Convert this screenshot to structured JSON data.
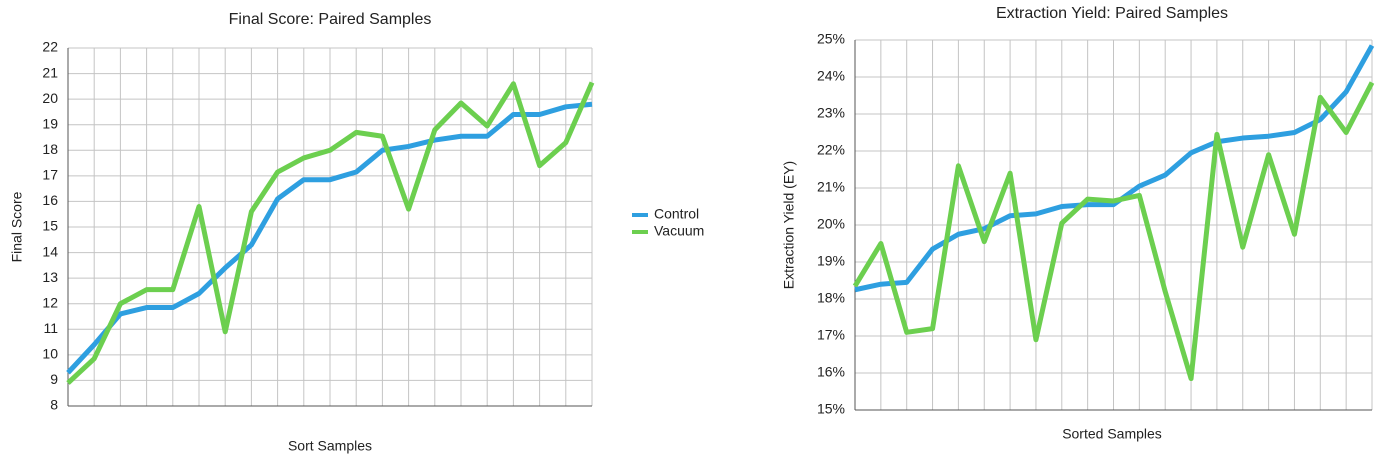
{
  "chart_data": [
    {
      "type": "line",
      "title": "Final Score: Paired Samples",
      "x_label": "Sort Samples",
      "y_label": "Final Score",
      "categories": [
        null,
        null,
        null,
        null,
        null,
        null,
        null,
        null,
        null,
        null,
        null,
        null,
        null,
        null,
        null,
        null,
        null,
        null,
        null,
        null,
        null
      ],
      "series": [
        {
          "name": "Control",
          "color": "#2e9fe0",
          "values": [
            9.3,
            10.4,
            11.6,
            11.85,
            11.85,
            12.4,
            13.4,
            14.3,
            16.1,
            16.85,
            16.85,
            17.15,
            18.0,
            18.15,
            18.4,
            18.55,
            18.55,
            19.4,
            19.4,
            19.7,
            19.8
          ]
        },
        {
          "name": "Vacuum",
          "color": "#6ccf4f",
          "values": [
            8.9,
            9.85,
            12.0,
            12.55,
            12.55,
            15.8,
            10.9,
            15.6,
            17.15,
            17.7,
            18.0,
            18.7,
            18.55,
            15.7,
            18.8,
            19.85,
            18.95,
            20.6,
            17.4,
            18.3,
            20.65
          ]
        }
      ],
      "ylim": [
        8,
        22
      ],
      "yticks": [
        8,
        9,
        10,
        11,
        12,
        13,
        14,
        15,
        16,
        17,
        18,
        19,
        20,
        21,
        22
      ],
      "grid": true,
      "legend": "right"
    },
    {
      "type": "line",
      "title": "Extraction Yield: Paired Samples",
      "x_label": "Sorted Samples",
      "y_label": "Extraction Yield (EY)",
      "categories": [
        null,
        null,
        null,
        null,
        null,
        null,
        null,
        null,
        null,
        null,
        null,
        null,
        null,
        null,
        null,
        null,
        null,
        null,
        null,
        null,
        null
      ],
      "series": [
        {
          "color": "#2e9fe0",
          "values": [
            18.25,
            18.4,
            18.45,
            19.35,
            19.75,
            19.9,
            20.25,
            20.3,
            20.5,
            20.55,
            20.55,
            21.05,
            21.35,
            21.95,
            22.25,
            22.35,
            22.4,
            22.5,
            22.85,
            23.6,
            24.85
          ]
        },
        {
          "color": "#6ccf4f",
          "values": [
            18.35,
            19.5,
            17.1,
            17.2,
            21.6,
            19.55,
            21.4,
            16.9,
            20.05,
            20.7,
            20.65,
            20.8,
            18.2,
            15.85,
            22.45,
            19.4,
            21.9,
            19.75,
            23.45,
            22.5,
            23.85
          ]
        }
      ],
      "ylim": [
        15,
        25
      ],
      "yticks": [
        {
          "value": 15,
          "label": "15%"
        },
        {
          "value": 16,
          "label": "16%"
        },
        {
          "value": 17,
          "label": "17%"
        },
        {
          "value": 18,
          "label": "18%"
        },
        {
          "value": 19,
          "label": "19%"
        },
        {
          "value": 20,
          "label": "20%"
        },
        {
          "value": 21,
          "label": "21%"
        },
        {
          "value": 22,
          "label": "22%"
        },
        {
          "value": 23,
          "label": "23%"
        },
        {
          "value": 24,
          "label": "24%"
        },
        {
          "value": 25,
          "label": "25%"
        }
      ],
      "grid": true
    }
  ]
}
